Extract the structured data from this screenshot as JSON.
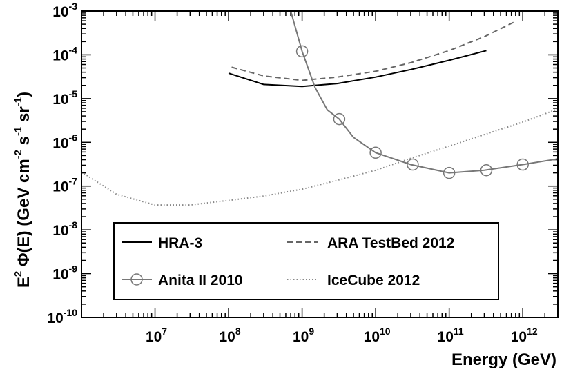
{
  "chart_data": {
    "type": "line",
    "title": "",
    "xlabel": "Energy (GeV)",
    "ylabel": "E2 Φ(E) (GeV cm-2 s-1 sr-1)",
    "xscale": "log",
    "yscale": "log",
    "xlim": [
      1000000,
      3000000000000
    ],
    "ylim": [
      1e-10,
      0.001
    ],
    "x_tick_labels": [
      {
        "value": 10000000,
        "base": "10",
        "exp": "7"
      },
      {
        "value": 100000000,
        "base": "10",
        "exp": "8"
      },
      {
        "value": 1000000000,
        "base": "10",
        "exp": "9"
      },
      {
        "value": 10000000000,
        "base": "10",
        "exp": "10"
      },
      {
        "value": 100000000000,
        "base": "10",
        "exp": "11"
      },
      {
        "value": 1000000000000,
        "base": "10",
        "exp": "12"
      }
    ],
    "y_tick_labels": [
      {
        "value": 0.001,
        "base": "10",
        "exp": "-3"
      },
      {
        "value": 0.0001,
        "base": "10",
        "exp": "-4"
      },
      {
        "value": 1e-05,
        "base": "10",
        "exp": "-5"
      },
      {
        "value": 1e-06,
        "base": "10",
        "exp": "-6"
      },
      {
        "value": 1e-07,
        "base": "10",
        "exp": "-7"
      },
      {
        "value": 1e-08,
        "base": "10",
        "exp": "-8"
      },
      {
        "value": 1e-09,
        "base": "10",
        "exp": "-9"
      },
      {
        "value": 1e-10,
        "base": "10",
        "exp": "-10"
      }
    ],
    "y_title_parts": {
      "e": "E",
      "e_exp": "2",
      "phi": "Φ(E)",
      "open": "(GeV cm",
      "cm_exp": "-2",
      "s": "s",
      "s_exp": "-1",
      "sr": "sr",
      "sr_exp": "-1",
      "close": ")"
    },
    "legend_position": "bottom-center",
    "series": [
      {
        "name": "HRA-3",
        "color": "#000000",
        "dash": "solid",
        "marker": "none",
        "width": 2,
        "x": [
          100000000,
          300000000,
          1000000000,
          3000000000,
          10000000000,
          30000000000,
          100000000000,
          320000000000
        ],
        "y": [
          3.8e-05,
          2.1e-05,
          1.9e-05,
          2.2e-05,
          3.1e-05,
          4.6e-05,
          7.5e-05,
          0.000125
        ]
      },
      {
        "name": "ARA TestBed 2012",
        "color": "#666666",
        "dash": "dashed",
        "marker": "none",
        "width": 2,
        "x": [
          110000000,
          300000000,
          1000000000,
          3000000000,
          10000000000,
          30000000000,
          100000000000,
          300000000000,
          800000000000
        ],
        "y": [
          5.2e-05,
          3.3e-05,
          2.6e-05,
          3.1e-05,
          4.2e-05,
          6.6e-05,
          0.000125,
          0.00026,
          0.00058
        ]
      },
      {
        "name": "Anita II 2010",
        "color": "#777777",
        "dash": "solid",
        "marker": "circle",
        "width": 2,
        "x": [
          700000000,
          1000000000,
          1500000000,
          2200000000,
          3200000000,
          5000000000,
          10000000000,
          30000000000,
          100000000000,
          300000000000,
          1000000000000,
          3000000000000
        ],
        "y": [
          0.001,
          0.00012,
          1.8e-05,
          5.5e-06,
          3.4e-06,
          1.3e-06,
          5.8e-07,
          3.1e-07,
          2e-07,
          2.3e-07,
          3.1e-07,
          4.2e-07
        ],
        "marker_x": [
          1000000000,
          3200000000,
          10000000000,
          32000000000,
          100000000000,
          320000000000,
          1000000000000
        ],
        "marker_y": [
          0.00012,
          3.4e-06,
          5.8e-07,
          3.1e-07,
          2e-07,
          2.3e-07,
          3.1e-07
        ]
      },
      {
        "name": "IceCube 2012",
        "color": "#888888",
        "dash": "dotted",
        "marker": "none",
        "width": 2,
        "x": [
          1000000,
          3000000,
          10000000,
          30000000,
          100000000,
          300000000,
          1000000000,
          3000000000,
          10000000000,
          30000000000,
          100000000000,
          300000000000,
          1000000000000,
          3000000000000
        ],
        "y": [
          2.1e-07,
          6.5e-08,
          3.7e-08,
          3.7e-08,
          4.7e-08,
          5.9e-08,
          8.5e-08,
          1.35e-07,
          2.3e-07,
          4.3e-07,
          8.2e-07,
          1.5e-06,
          2.9e-06,
          5.8e-06
        ]
      }
    ]
  }
}
